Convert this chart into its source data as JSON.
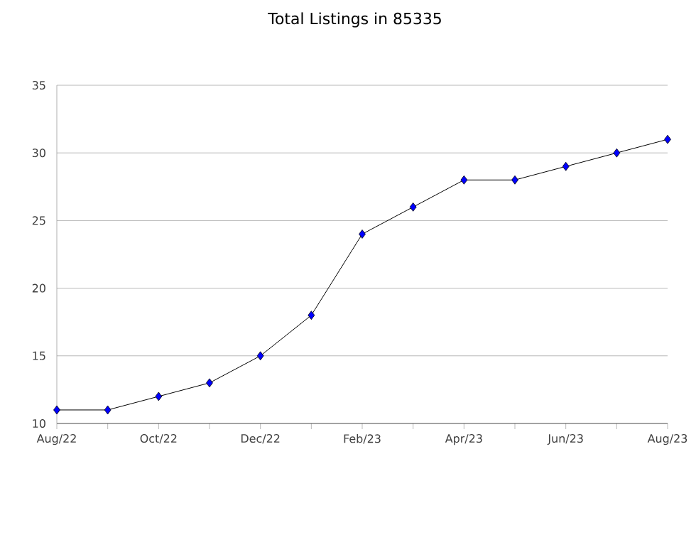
{
  "chart_data": {
    "type": "line",
    "title": "Total Listings in 85335",
    "x": [
      "2022-08",
      "2022-09",
      "2022-10",
      "2022-11",
      "2022-12",
      "2023-01",
      "2023-02",
      "2023-03",
      "2023-04",
      "2023-05",
      "2023-06",
      "2023-07",
      "2023-08"
    ],
    "series": [
      {
        "color": "#0000ff",
        "values": [
          11,
          11,
          12,
          13,
          15,
          18,
          24,
          26,
          28,
          28,
          29,
          30,
          31
        ]
      }
    ],
    "xlim": [
      "2022-08",
      "2023-08"
    ],
    "xticks": [
      {
        "value": "2022-08",
        "label": "Aug/22"
      },
      {
        "value": "2022-09",
        "label": null
      },
      {
        "value": "2022-10",
        "label": "Oct/22"
      },
      {
        "value": "2022-11",
        "label": null
      },
      {
        "value": "2022-12",
        "label": "Dec/22"
      },
      {
        "value": "2023-01",
        "label": null
      },
      {
        "value": "2023-02",
        "label": "Feb/23"
      },
      {
        "value": "2023-03",
        "label": null
      },
      {
        "value": "2023-04",
        "label": "Apr/23"
      },
      {
        "value": "2023-05",
        "label": null
      },
      {
        "value": "2023-06",
        "label": "Jun/23"
      },
      {
        "value": "2023-07",
        "label": null
      },
      {
        "value": "2023-08",
        "label": "Aug/23"
      }
    ],
    "ylim": [
      10,
      35
    ],
    "yticks": [
      10,
      15,
      20,
      25,
      30,
      35
    ],
    "grid": "y",
    "marker": "diamond",
    "line_style": "solid"
  }
}
